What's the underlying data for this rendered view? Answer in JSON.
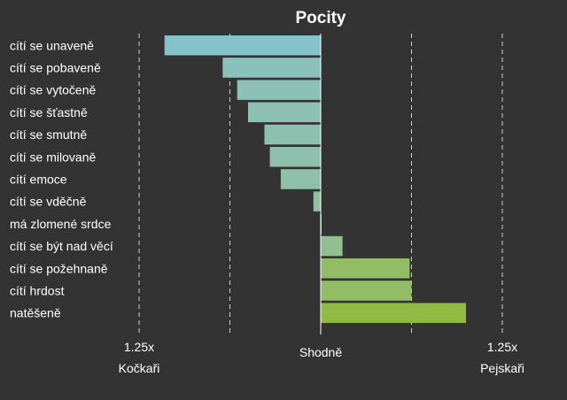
{
  "chart_data": {
    "type": "bar",
    "orientation": "horizontal",
    "title": "Pocity",
    "categories": [
      "cítí se unaveně",
      "cítí se pobaveně",
      "cítí se vytočeně",
      "cítí se šťastně",
      "cítí se smutně",
      "cítí se milovaně",
      "cítí emoce",
      "cítí se vděčně",
      "má zlomené srdce",
      "cítí se být nad věcí",
      "cítí se požehnaně",
      "cítí hrdost",
      "natěšeně"
    ],
    "values": [
      -0.43,
      -0.27,
      -0.23,
      -0.2,
      -0.155,
      -0.14,
      -0.11,
      -0.02,
      0.0,
      0.06,
      0.245,
      0.25,
      0.4
    ],
    "xlim": [
      -0.5,
      0.5
    ],
    "x_tick_labels": {
      "left": "1.25x",
      "center": "Shodně",
      "right": "1.25x"
    },
    "side_labels": {
      "left": "Kočkaři",
      "right": "Pejskaři"
    },
    "grid": "vertical dashed",
    "colors": {
      "negative": "#85c2cc",
      "neutral": "#92c09e",
      "positive": "#8fbb42",
      "background": "#333333",
      "grid": "#cfcfcf"
    }
  }
}
